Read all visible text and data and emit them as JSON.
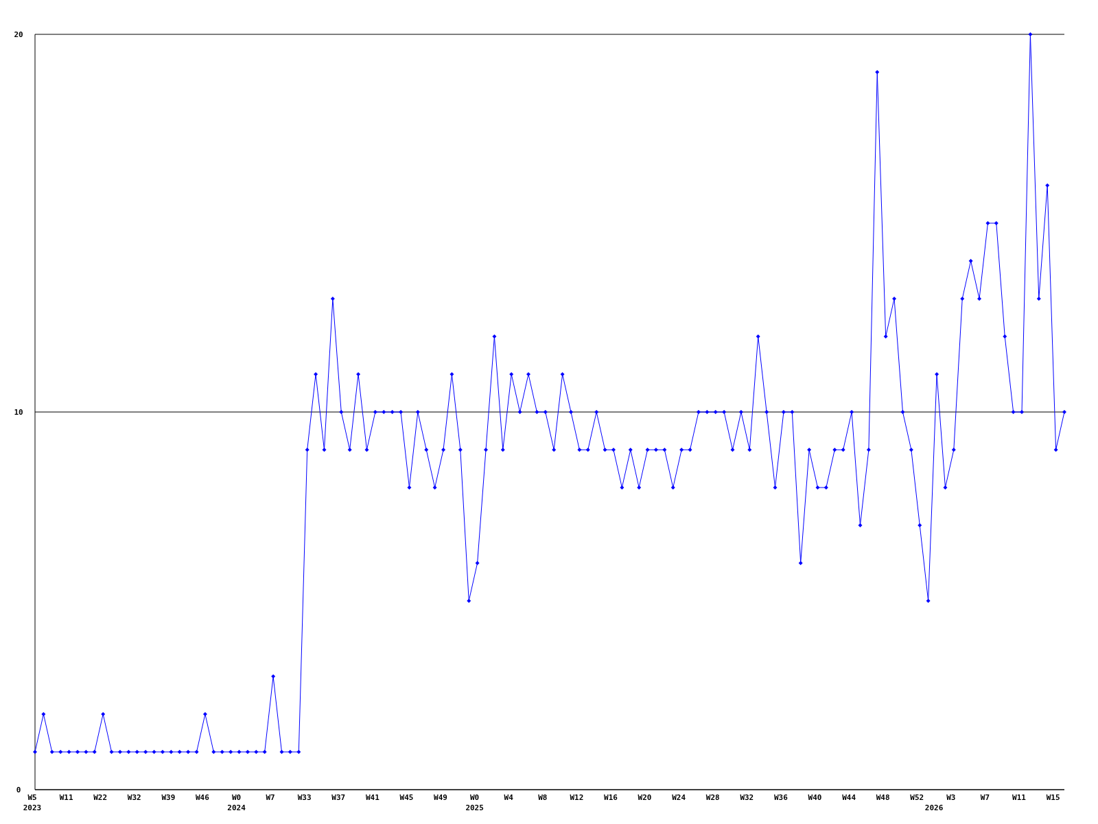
{
  "chart_data": {
    "type": "line",
    "categories": [
      "W5\n2023",
      null,
      null,
      null,
      "W11",
      null,
      null,
      null,
      "W22",
      null,
      null,
      null,
      "W32",
      null,
      null,
      null,
      "W39",
      null,
      null,
      null,
      "W46",
      null,
      null,
      null,
      "W0\n2024",
      null,
      null,
      null,
      "W7",
      null,
      null,
      null,
      "W33",
      null,
      null,
      null,
      "W37",
      null,
      null,
      null,
      "W41",
      null,
      null,
      null,
      "W45",
      null,
      null,
      null,
      "W49",
      null,
      null,
      null,
      "W0\n2025",
      null,
      null,
      null,
      "W4",
      null,
      null,
      null,
      "W8",
      null,
      null,
      null,
      "W12",
      null,
      null,
      null,
      "W16",
      null,
      null,
      null,
      "W20",
      null,
      null,
      null,
      "W24",
      null,
      null,
      null,
      "W28",
      null,
      null,
      null,
      "W32",
      null,
      null,
      null,
      "W36",
      null,
      null,
      null,
      "W40",
      null,
      null,
      null,
      "W44",
      null,
      null,
      null,
      "W48",
      null,
      null,
      null,
      "W52",
      null,
      "\n2026",
      null,
      "W3",
      null,
      null,
      null,
      "W7",
      null,
      null,
      null,
      "W11",
      null,
      null,
      null,
      "W15",
      null
    ],
    "series": [
      {
        "color": "#0000ff",
        "values": [
          1,
          2,
          1,
          1,
          1,
          1,
          1,
          1,
          2,
          1,
          1,
          1,
          1,
          1,
          1,
          1,
          1,
          1,
          1,
          1,
          2,
          1,
          1,
          1,
          1,
          1,
          1,
          1,
          3,
          1,
          1,
          1,
          9,
          11,
          9,
          13,
          10,
          9,
          11,
          9,
          10,
          10,
          10,
          10,
          8,
          10,
          9,
          8,
          9,
          11,
          9,
          5,
          6,
          9,
          12,
          9,
          11,
          10,
          11,
          10,
          10,
          9,
          11,
          10,
          9,
          9,
          10,
          9,
          9,
          8,
          9,
          8,
          9,
          9,
          9,
          8,
          9,
          9,
          10,
          10,
          10,
          10,
          9,
          10,
          9,
          12,
          10,
          8,
          10,
          10,
          6,
          9,
          8,
          8,
          9,
          9,
          10,
          7,
          9,
          19,
          12,
          13,
          10,
          9,
          7,
          5,
          11,
          8,
          9,
          13,
          14,
          13,
          15,
          15,
          12,
          10,
          10,
          20,
          13,
          16,
          9,
          10
        ]
      }
    ],
    "ylim": [
      0,
      20
    ],
    "yticks": [
      0,
      10,
      20
    ],
    "grid": "y",
    "marker": "diamond"
  }
}
